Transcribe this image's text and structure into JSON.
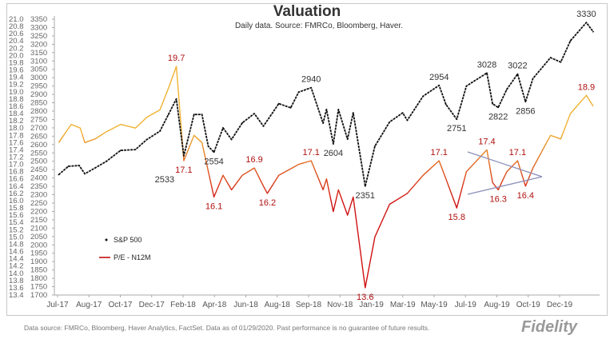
{
  "chart_data": {
    "type": "line",
    "title": "Valuation",
    "subtitle": "Daily data.  Source: FMRCo, Bloomberg, Haver.",
    "x_tick_labels": [
      "Jul-17",
      "Aug-17",
      "Oct-17",
      "Dec-17",
      "Feb-18",
      "Apr-18",
      "Jun-18",
      "Aug-18",
      "Sep-18",
      "Nov-18",
      "Jan-19",
      "Mar-19",
      "May-19",
      "Jul-19",
      "Aug-19",
      "Oct-19",
      "Dec-19"
    ],
    "y_left_outer": {
      "ticks": [
        "21.0",
        "20.8",
        "20.6",
        "20.4",
        "20.2",
        "20.0",
        "19.8",
        "19.6",
        "19.4",
        "19.2",
        "19.0",
        "18.8",
        "18.6",
        "18.4",
        "18.2",
        "18.0",
        "17.8",
        "17.6",
        "17.4",
        "17.2",
        "17.0",
        "16.8",
        "16.6",
        "16.4",
        "16.2",
        "16.0",
        "15.8",
        "15.6",
        "15.4",
        "15.2",
        "15.0",
        "14.8",
        "14.6",
        "14.4",
        "14.2",
        "14.0",
        "13.8",
        "13.6",
        "13.4"
      ],
      "range": [
        13.4,
        21.0
      ]
    },
    "y_left_inner": {
      "ticks": [
        "3350",
        "3300",
        "3250",
        "3200",
        "3150",
        "3100",
        "3050",
        "3000",
        "2950",
        "2900",
        "2850",
        "2800",
        "2750",
        "2700",
        "2650",
        "2600",
        "2550",
        "2500",
        "2450",
        "2400",
        "2350",
        "2300",
        "2250",
        "2200",
        "2150",
        "2100",
        "2050",
        "2000",
        "1950",
        "1900",
        "1850",
        "1800",
        "1750",
        "1700"
      ],
      "range": [
        1700,
        3350
      ]
    },
    "legend": {
      "placement": "left-middle",
      "entries": [
        {
          "label": "S&P 500",
          "color": "#111111"
        },
        {
          "label": "P/E - N12M",
          "color": "#c00000"
        }
      ]
    },
    "colors": {
      "sp500": "#111111",
      "pe_high": "#f0b232",
      "pe_low": "#d01010",
      "label_pe": "#b01010",
      "label_sp": "#333333",
      "wedge": "#8a8fb8"
    },
    "series": [
      {
        "name": "S&P 500",
        "axis": "inner",
        "points": [
          [
            "2017-07-03",
            2420
          ],
          [
            "2017-07-20",
            2470
          ],
          [
            "2017-08-08",
            2475
          ],
          [
            "2017-08-18",
            2425
          ],
          [
            "2017-09-05",
            2460
          ],
          [
            "2017-09-25",
            2500
          ],
          [
            "2017-10-20",
            2565
          ],
          [
            "2017-11-15",
            2570
          ],
          [
            "2017-12-05",
            2630
          ],
          [
            "2017-12-28",
            2680
          ],
          [
            "2018-01-12",
            2780
          ],
          [
            "2018-01-26",
            2873
          ],
          [
            "2018-02-08",
            2533
          ],
          [
            "2018-02-26",
            2780
          ],
          [
            "2018-03-12",
            2780
          ],
          [
            "2018-03-23",
            2590
          ],
          [
            "2018-04-02",
            2554
          ],
          [
            "2018-04-18",
            2700
          ],
          [
            "2018-05-03",
            2630
          ],
          [
            "2018-05-22",
            2730
          ],
          [
            "2018-06-12",
            2785
          ],
          [
            "2018-06-28",
            2710
          ],
          [
            "2018-07-25",
            2845
          ],
          [
            "2018-08-15",
            2820
          ],
          [
            "2018-08-29",
            2914
          ],
          [
            "2018-09-20",
            2940
          ],
          [
            "2018-10-11",
            2728
          ],
          [
            "2018-10-17",
            2810
          ],
          [
            "2018-10-29",
            2604
          ],
          [
            "2018-11-07",
            2810
          ],
          [
            "2018-11-23",
            2632
          ],
          [
            "2018-12-03",
            2790
          ],
          [
            "2018-12-24",
            2351
          ],
          [
            "2019-01-10",
            2590
          ],
          [
            "2019-02-05",
            2735
          ],
          [
            "2019-02-28",
            2790
          ],
          [
            "2019-03-08",
            2745
          ],
          [
            "2019-04-05",
            2890
          ],
          [
            "2019-05-03",
            2954
          ],
          [
            "2019-05-15",
            2840
          ],
          [
            "2019-06-03",
            2751
          ],
          [
            "2019-06-20",
            2950
          ],
          [
            "2019-07-26",
            3028
          ],
          [
            "2019-08-05",
            2844
          ],
          [
            "2019-08-15",
            2822
          ],
          [
            "2019-08-30",
            2930
          ],
          [
            "2019-09-18",
            3022
          ],
          [
            "2019-10-02",
            2856
          ],
          [
            "2019-10-15",
            2995
          ],
          [
            "2019-11-15",
            3120
          ],
          [
            "2019-12-03",
            3093
          ],
          [
            "2019-12-20",
            3221
          ],
          [
            "2020-01-17",
            3330
          ],
          [
            "2020-01-29",
            3275
          ]
        ]
      },
      {
        "name": "P/E - N12M",
        "axis": "outer",
        "points": [
          [
            "2017-07-03",
            17.6
          ],
          [
            "2017-07-25",
            18.1
          ],
          [
            "2017-08-10",
            18.0
          ],
          [
            "2017-08-18",
            17.6
          ],
          [
            "2017-09-05",
            17.7
          ],
          [
            "2017-09-25",
            17.9
          ],
          [
            "2017-10-20",
            18.1
          ],
          [
            "2017-11-15",
            18.0
          ],
          [
            "2017-12-05",
            18.3
          ],
          [
            "2017-12-28",
            18.5
          ],
          [
            "2018-01-12",
            19.1
          ],
          [
            "2018-01-26",
            19.7
          ],
          [
            "2018-02-08",
            17.1
          ],
          [
            "2018-02-26",
            17.8
          ],
          [
            "2018-03-12",
            17.6
          ],
          [
            "2018-04-02",
            16.1
          ],
          [
            "2018-04-18",
            16.7
          ],
          [
            "2018-05-03",
            16.3
          ],
          [
            "2018-05-22",
            16.7
          ],
          [
            "2018-06-12",
            16.9
          ],
          [
            "2018-06-28",
            16.4
          ],
          [
            "2018-07-05",
            16.2
          ],
          [
            "2018-07-25",
            16.7
          ],
          [
            "2018-08-29",
            17.0
          ],
          [
            "2018-09-20",
            17.1
          ],
          [
            "2018-10-11",
            16.3
          ],
          [
            "2018-10-17",
            16.6
          ],
          [
            "2018-10-29",
            15.7
          ],
          [
            "2018-11-07",
            16.3
          ],
          [
            "2018-11-23",
            15.6
          ],
          [
            "2018-12-03",
            16.1
          ],
          [
            "2018-12-24",
            13.6
          ],
          [
            "2019-01-10",
            15.0
          ],
          [
            "2019-02-05",
            15.9
          ],
          [
            "2019-03-08",
            16.2
          ],
          [
            "2019-04-05",
            16.7
          ],
          [
            "2019-05-03",
            17.1
          ],
          [
            "2019-05-15",
            16.6
          ],
          [
            "2019-06-03",
            15.8
          ],
          [
            "2019-06-20",
            16.8
          ],
          [
            "2019-07-26",
            17.4
          ],
          [
            "2019-08-05",
            16.5
          ],
          [
            "2019-08-15",
            16.3
          ],
          [
            "2019-08-30",
            16.8
          ],
          [
            "2019-09-18",
            17.1
          ],
          [
            "2019-10-02",
            16.4
          ],
          [
            "2019-10-15",
            16.9
          ],
          [
            "2019-11-15",
            17.8
          ],
          [
            "2019-12-03",
            17.7
          ],
          [
            "2019-12-20",
            18.4
          ],
          [
            "2020-01-17",
            18.9
          ],
          [
            "2020-01-29",
            18.6
          ]
        ]
      }
    ],
    "annotations": [
      {
        "text": "19.7",
        "series": "pe",
        "date": "2018-01-26",
        "value": 19.7,
        "position": "above"
      },
      {
        "text": "17.1",
        "series": "pe",
        "date": "2018-02-08",
        "value": 17.1,
        "position": "below"
      },
      {
        "text": "16.1",
        "series": "pe",
        "date": "2018-04-02",
        "value": 16.1,
        "position": "below"
      },
      {
        "text": "16.9",
        "series": "pe",
        "date": "2018-06-12",
        "value": 16.9,
        "position": "above"
      },
      {
        "text": "16.2",
        "series": "pe",
        "date": "2018-07-05",
        "value": 16.2,
        "position": "below"
      },
      {
        "text": "17.1",
        "series": "pe",
        "date": "2018-09-20",
        "value": 17.1,
        "position": "above"
      },
      {
        "text": "13.6",
        "series": "pe",
        "date": "2018-12-24",
        "value": 13.6,
        "position": "below"
      },
      {
        "text": "17.1",
        "series": "pe",
        "date": "2019-05-03",
        "value": 17.1,
        "position": "above"
      },
      {
        "text": "15.8",
        "series": "pe",
        "date": "2019-06-03",
        "value": 15.8,
        "position": "below"
      },
      {
        "text": "17.4",
        "series": "pe",
        "date": "2019-07-26",
        "value": 17.4,
        "position": "above"
      },
      {
        "text": "16.3",
        "series": "pe",
        "date": "2019-08-15",
        "value": 16.3,
        "position": "below"
      },
      {
        "text": "17.1",
        "series": "pe",
        "date": "2019-09-18",
        "value": 17.1,
        "position": "above"
      },
      {
        "text": "16.4",
        "series": "pe",
        "date": "2019-10-02",
        "value": 16.4,
        "position": "below"
      },
      {
        "text": "18.9",
        "series": "pe",
        "date": "2020-01-17",
        "value": 18.9,
        "position": "above"
      },
      {
        "text": "2533",
        "series": "sp",
        "date": "2018-02-08",
        "value": 2533,
        "position": "below"
      },
      {
        "text": "2554",
        "series": "sp",
        "date": "2018-04-02",
        "value": 2554,
        "position": "below"
      },
      {
        "text": "2940",
        "series": "sp",
        "date": "2018-09-20",
        "value": 2940,
        "position": "above"
      },
      {
        "text": "2604",
        "series": "sp",
        "date": "2018-10-29",
        "value": 2604,
        "position": "below"
      },
      {
        "text": "2351",
        "series": "sp",
        "date": "2018-12-24",
        "value": 2351,
        "position": "below"
      },
      {
        "text": "2954",
        "series": "sp",
        "date": "2019-05-03",
        "value": 2954,
        "position": "above"
      },
      {
        "text": "2751",
        "series": "sp",
        "date": "2019-06-03",
        "value": 2751,
        "position": "below"
      },
      {
        "text": "3028",
        "series": "sp",
        "date": "2019-07-26",
        "value": 3028,
        "position": "above"
      },
      {
        "text": "2822",
        "series": "sp",
        "date": "2019-08-15",
        "value": 2822,
        "position": "below"
      },
      {
        "text": "3022",
        "series": "sp",
        "date": "2019-09-18",
        "value": 3022,
        "position": "above"
      },
      {
        "text": "2856",
        "series": "sp",
        "date": "2019-10-02",
        "value": 2856,
        "position": "below"
      },
      {
        "text": "3330",
        "series": "sp",
        "date": "2020-01-17",
        "value": 3330,
        "position": "above"
      }
    ],
    "grid": false
  },
  "footer": "Data source: FMRCo, Bloomberg, Haver Analytics, FactSet.  Data as of 01/29/2020. Past performance is no guarantee of future results.",
  "logo": "Fidelity"
}
